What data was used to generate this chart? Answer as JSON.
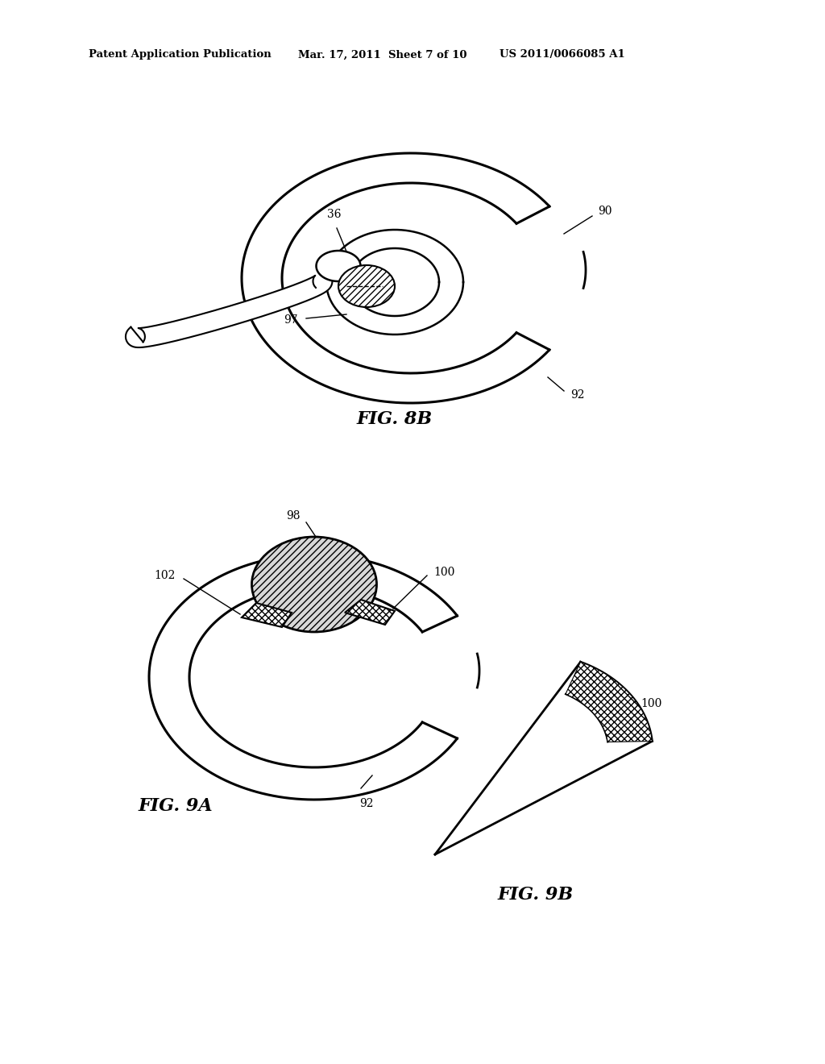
{
  "bg_color": "#ffffff",
  "header_left": "Patent Application Publication",
  "header_mid": "Mar. 17, 2011  Sheet 7 of 10",
  "header_right": "US 2011/0066085 A1",
  "fig8b_label": "FIG. 8B",
  "fig9a_label": "FIG. 9A",
  "fig9b_label": "FIG. 9B",
  "page_width": 10.24,
  "page_height": 13.2,
  "dpi": 100
}
